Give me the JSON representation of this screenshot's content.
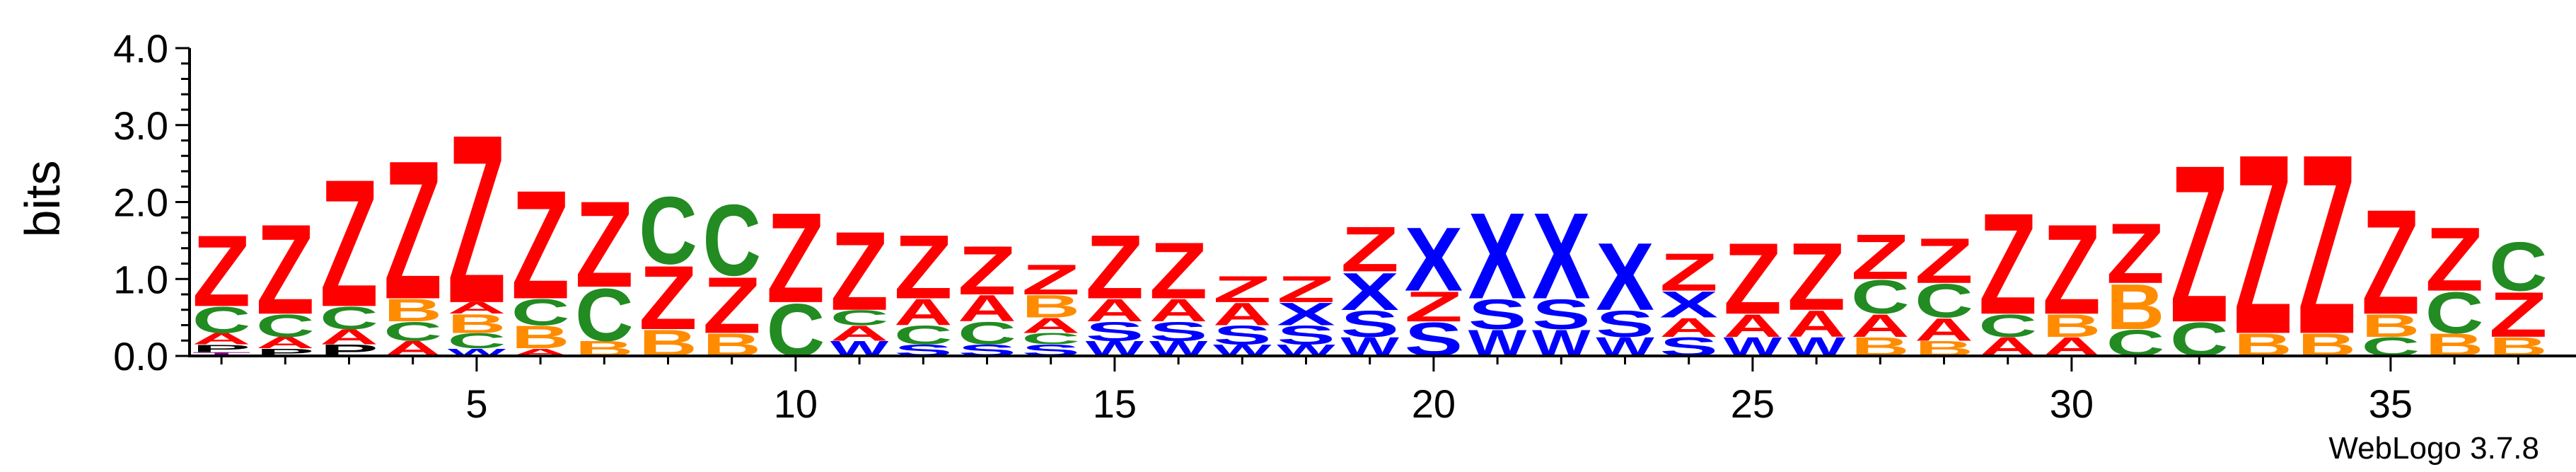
{
  "chart_data": {
    "type": "sequence-logo",
    "ylabel": "bits",
    "ylim": [
      0,
      4.0
    ],
    "yticks": [
      "0.0",
      "1.0",
      "2.0",
      "3.0",
      "4.0"
    ],
    "xticks": [
      5,
      10,
      15,
      20,
      25,
      30,
      35
    ],
    "positions": 37,
    "credit": "WebLogo 3.7.8",
    "colors": {
      "Z": "#ff0000",
      "A": "#ff0000",
      "C": "#228b22",
      "B": "#ff8c00",
      "X": "#0000ff",
      "S": "#0000ff",
      "W": "#0000ff",
      "T": "#800080"
    },
    "columns": [
      [
        [
          "T",
          0.05
        ],
        [
          "P",
          0.1
        ],
        [
          "A",
          0.15
        ],
        [
          "C",
          0.35
        ],
        [
          "Z",
          0.95
        ]
      ],
      [
        [
          "P",
          0.1
        ],
        [
          "A",
          0.15
        ],
        [
          "C",
          0.3
        ],
        [
          "Z",
          1.2
        ]
      ],
      [
        [
          "P",
          0.15
        ],
        [
          "A",
          0.2
        ],
        [
          "C",
          0.3
        ],
        [
          "Z",
          1.7
        ]
      ],
      [
        [
          "A",
          0.2
        ],
        [
          "C",
          0.25
        ],
        [
          "B",
          0.3
        ],
        [
          "Z",
          1.85
        ]
      ],
      [
        [
          "W",
          0.1
        ],
        [
          "C",
          0.2
        ],
        [
          "B",
          0.25
        ],
        [
          "A",
          0.15
        ],
        [
          "Z",
          2.25
        ]
      ],
      [
        [
          "A",
          0.1
        ],
        [
          "B",
          0.3
        ],
        [
          "C",
          0.35
        ],
        [
          "Z",
          1.45
        ]
      ],
      [
        [
          "B",
          0.2
        ],
        [
          "C",
          0.7
        ],
        [
          "Z",
          1.15
        ]
      ],
      [
        [
          "B",
          0.35
        ],
        [
          "Z",
          0.85
        ],
        [
          "C",
          0.9
        ]
      ],
      [
        [
          "B",
          0.3
        ],
        [
          "Z",
          0.75
        ],
        [
          "C",
          0.95
        ]
      ],
      [
        [
          "C",
          0.7
        ],
        [
          "Z",
          1.2
        ]
      ],
      [
        [
          "W",
          0.2
        ],
        [
          "A",
          0.2
        ],
        [
          "C",
          0.2
        ],
        [
          "Z",
          1.05
        ]
      ],
      [
        [
          "S",
          0.15
        ],
        [
          "C",
          0.25
        ],
        [
          "A",
          0.35
        ],
        [
          "Z",
          0.85
        ]
      ],
      [
        [
          "S",
          0.15
        ],
        [
          "C",
          0.3
        ],
        [
          "A",
          0.35
        ],
        [
          "Z",
          0.65
        ]
      ],
      [
        [
          "S",
          0.15
        ],
        [
          "C",
          0.15
        ],
        [
          "A",
          0.2
        ],
        [
          "B",
          0.3
        ],
        [
          "Z",
          0.4
        ]
      ],
      [
        [
          "W",
          0.2
        ],
        [
          "S",
          0.25
        ],
        [
          "A",
          0.3
        ],
        [
          "Z",
          0.85
        ]
      ],
      [
        [
          "W",
          0.2
        ],
        [
          "S",
          0.25
        ],
        [
          "A",
          0.3
        ],
        [
          "Z",
          0.75
        ]
      ],
      [
        [
          "W",
          0.15
        ],
        [
          "S",
          0.25
        ],
        [
          "A",
          0.3
        ],
        [
          "Z",
          0.35
        ]
      ],
      [
        [
          "W",
          0.15
        ],
        [
          "S",
          0.25
        ],
        [
          "X",
          0.3
        ],
        [
          "Z",
          0.35
        ]
      ],
      [
        [
          "W",
          0.25
        ],
        [
          "S",
          0.35
        ],
        [
          "X",
          0.5
        ],
        [
          "Z",
          0.6
        ]
      ],
      [
        [
          "S",
          0.45
        ],
        [
          "Z",
          0.4
        ],
        [
          "X",
          0.85
        ]
      ],
      [
        [
          "W",
          0.35
        ],
        [
          "S",
          0.4
        ],
        [
          "X",
          1.15
        ]
      ],
      [
        [
          "W",
          0.35
        ],
        [
          "S",
          0.4
        ],
        [
          "X",
          1.15
        ]
      ],
      [
        [
          "W",
          0.25
        ],
        [
          "S",
          0.35
        ],
        [
          "X",
          0.9
        ]
      ],
      [
        [
          "S",
          0.25
        ],
        [
          "A",
          0.25
        ],
        [
          "X",
          0.35
        ],
        [
          "Z",
          0.5
        ]
      ],
      [
        [
          "W",
          0.25
        ],
        [
          "A",
          0.3
        ],
        [
          "Z",
          0.95
        ]
      ],
      [
        [
          "W",
          0.25
        ],
        [
          "A",
          0.35
        ],
        [
          "Z",
          0.9
        ]
      ],
      [
        [
          "B",
          0.25
        ],
        [
          "A",
          0.3
        ],
        [
          "C",
          0.45
        ],
        [
          "Z",
          0.6
        ]
      ],
      [
        [
          "B",
          0.2
        ],
        [
          "A",
          0.3
        ],
        [
          "C",
          0.45
        ],
        [
          "Z",
          0.6
        ]
      ],
      [
        [
          "A",
          0.25
        ],
        [
          "C",
          0.3
        ],
        [
          "Z",
          1.35
        ]
      ],
      [
        [
          "A",
          0.25
        ],
        [
          "B",
          0.3
        ],
        [
          "Z",
          1.2
        ]
      ],
      [
        [
          "C",
          0.35
        ],
        [
          "B",
          0.6
        ],
        [
          "Z",
          0.8
        ]
      ],
      [
        [
          "C",
          0.45
        ],
        [
          "Z",
          2.1
        ]
      ],
      [
        [
          "B",
          0.3
        ],
        [
          "Z",
          2.4
        ]
      ],
      [
        [
          "B",
          0.3
        ],
        [
          "Z",
          2.4
        ]
      ],
      [
        [
          "C",
          0.25
        ],
        [
          "B",
          0.3
        ],
        [
          "Z",
          1.4
        ]
      ],
      [
        [
          "B",
          0.3
        ],
        [
          "C",
          0.55
        ],
        [
          "Z",
          0.85
        ]
      ],
      [
        [
          "B",
          0.25
        ],
        [
          "Z",
          0.6
        ],
        [
          "C",
          0.65
        ]
      ]
    ]
  }
}
